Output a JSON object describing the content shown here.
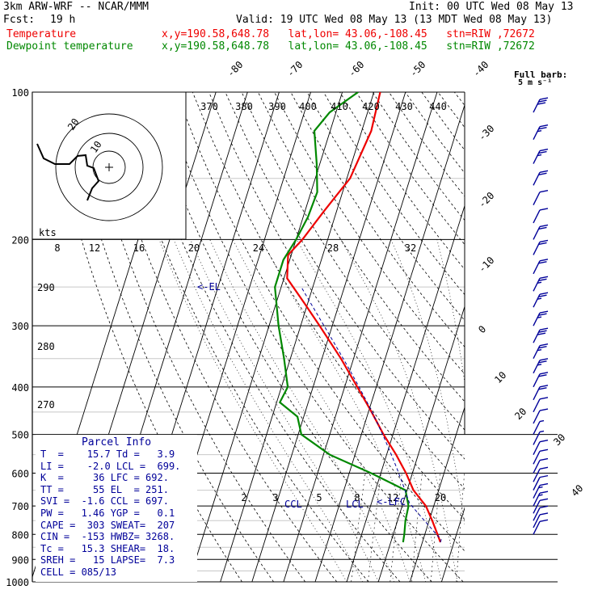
{
  "header": {
    "model": "3km ARW-WRF -- NCAR/MMM",
    "fcst_label": "Fcst:",
    "fcst_value": "19 h",
    "init": "Init: 00 UTC Wed 08 May 13",
    "valid": "Valid: 19 UTC Wed 08 May 13 (13 MDT Wed 08 May 13)",
    "temp_label": "Temperature",
    "dew_label": "Dewpoint temperature",
    "loc_line": "x,y=190.58,648.78   lat,lon= 43.06,-108.45   stn=RIW ,72672",
    "barb_label": "Full barb:",
    "barb_unit": "5 m s⁻¹"
  },
  "colors": {
    "temperature": "#ee0000",
    "dewpoint": "#008800",
    "winds": "#000099",
    "lines": "#000000"
  },
  "chart_data": {
    "type": "line",
    "subtype": "skew-T log-p sounding",
    "y_axis": {
      "quantity": "pressure",
      "unit": "hPa",
      "scale": "log",
      "range": [
        1000,
        100
      ],
      "ticks": [
        100,
        200,
        300,
        400,
        500,
        600,
        700,
        800,
        900,
        1000
      ]
    },
    "isotherm_labels": [
      -80,
      -70,
      -60,
      -50,
      -40,
      -30,
      -20,
      -10,
      0,
      10,
      20,
      30,
      40
    ],
    "mixing_ratio_labels": [
      "2",
      "3",
      "5",
      "8",
      "12",
      "20"
    ],
    "theta_labels": [
      "290",
      "280",
      "270"
    ],
    "theta_e_labels": [
      "370",
      "380",
      "390",
      "400",
      "410",
      "420",
      "430",
      "440"
    ],
    "hodo_speed_labels": [
      "8",
      "12",
      "16",
      "20",
      "24",
      "28",
      "32"
    ],
    "hodo_units": "kts",
    "hodo_ring_labels": [
      "20",
      "10"
    ],
    "level_labels": {
      "el": "<-EL",
      "ccl": "CCL",
      "lcl": "LCL",
      "lfc": "<-LFC"
    },
    "series": [
      {
        "name": "Temperature",
        "points": [
          [
            100,
            -48
          ],
          [
            120,
            -47
          ],
          [
            150,
            -49
          ],
          [
            175,
            -54
          ],
          [
            200,
            -58
          ],
          [
            215,
            -61
          ],
          [
            240,
            -59
          ],
          [
            270,
            -51
          ],
          [
            300,
            -44
          ],
          [
            350,
            -34
          ],
          [
            400,
            -26
          ],
          [
            450,
            -19
          ],
          [
            500,
            -13
          ],
          [
            550,
            -7
          ],
          [
            600,
            -2
          ],
          [
            650,
            2
          ],
          [
            700,
            7.5
          ],
          [
            750,
            11
          ],
          [
            800,
            14
          ],
          [
            830,
            15.7
          ]
        ]
      },
      {
        "name": "Dewpoint temperature",
        "points": [
          [
            100,
            -55
          ],
          [
            110,
            -62
          ],
          [
            120,
            -65
          ],
          [
            140,
            -61
          ],
          [
            160,
            -58
          ],
          [
            180,
            -58.5
          ],
          [
            200,
            -60
          ],
          [
            220,
            -62
          ],
          [
            250,
            -62
          ],
          [
            300,
            -57
          ],
          [
            350,
            -52
          ],
          [
            400,
            -48
          ],
          [
            430,
            -49
          ],
          [
            460,
            -42
          ],
          [
            500,
            -39
          ],
          [
            550,
            -28
          ],
          [
            600,
            -13
          ],
          [
            650,
            -0.5
          ],
          [
            700,
            2
          ],
          [
            750,
            2.5
          ],
          [
            800,
            3.5
          ],
          [
            830,
            3.9
          ]
        ]
      }
    ],
    "wind_barbs": [
      {
        "p": 110,
        "spd_ms": 28
      },
      {
        "p": 125,
        "spd_ms": 25
      },
      {
        "p": 140,
        "spd_ms": 23
      },
      {
        "p": 155,
        "spd_ms": 20
      },
      {
        "p": 170,
        "spd_ms": 12
      },
      {
        "p": 185,
        "spd_ms": 8
      },
      {
        "p": 200,
        "spd_ms": 18
      },
      {
        "p": 215,
        "spd_ms": 20
      },
      {
        "p": 235,
        "spd_ms": 22
      },
      {
        "p": 255,
        "spd_ms": 25
      },
      {
        "p": 275,
        "spd_ms": 25
      },
      {
        "p": 300,
        "spd_ms": 27
      },
      {
        "p": 325,
        "spd_ms": 28
      },
      {
        "p": 350,
        "spd_ms": 25
      },
      {
        "p": 375,
        "spd_ms": 24
      },
      {
        "p": 400,
        "spd_ms": 22
      },
      {
        "p": 425,
        "spd_ms": 18
      },
      {
        "p": 450,
        "spd_ms": 12
      },
      {
        "p": 475,
        "spd_ms": 8
      },
      {
        "p": 500,
        "spd_ms": 6
      },
      {
        "p": 525,
        "spd_ms": 7
      },
      {
        "p": 550,
        "spd_ms": 9
      },
      {
        "p": 575,
        "spd_ms": 10
      },
      {
        "p": 600,
        "spd_ms": 12
      },
      {
        "p": 625,
        "spd_ms": 12
      },
      {
        "p": 650,
        "spd_ms": 12
      },
      {
        "p": 675,
        "spd_ms": 13
      },
      {
        "p": 700,
        "spd_ms": 13
      },
      {
        "p": 725,
        "spd_ms": 12
      },
      {
        "p": 750,
        "spd_ms": 12
      },
      {
        "p": 775,
        "spd_ms": 11
      },
      {
        "p": 800,
        "spd_ms": 10
      }
    ]
  },
  "parcel_info": {
    "title": "Parcel Info",
    "rows": [
      "T  =    15.7 Td =   3.9",
      "LI =    -2.0 LCL =  699.",
      "K  =     36 LFC = 692.",
      "TT =     55 EL  = 251.",
      "SVI =  -1.6 CCL = 697.",
      "PW =   1.46 YGP =   0.1",
      "CAPE =  303 SWEAT=  207",
      "CIN =  -153 HWBZ= 3268.",
      "Tc =   15.3 SHEAR=  18.",
      "SREH =   15 LAPSE=  7.3",
      "CELL = 085/13"
    ]
  }
}
